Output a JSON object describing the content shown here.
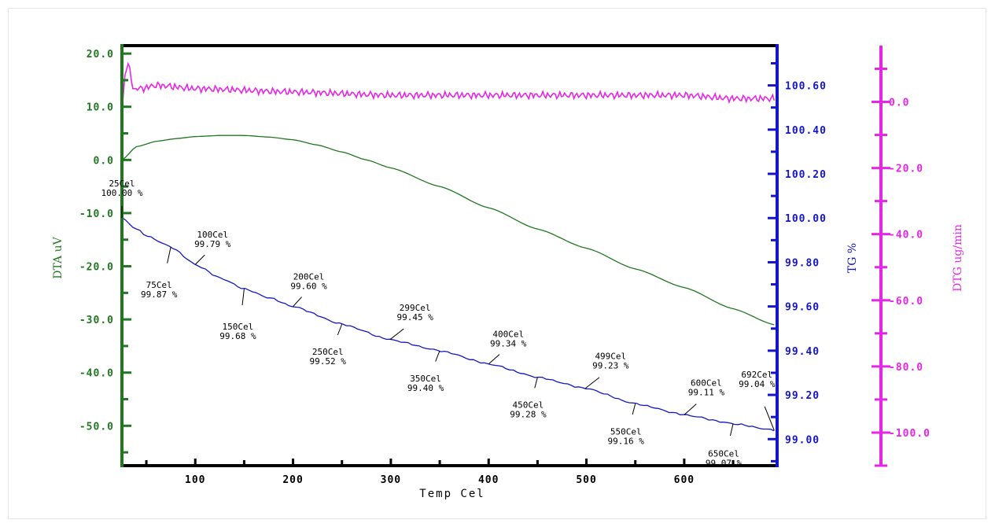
{
  "chart_data": {
    "type": "line",
    "xlabel": "Temp Cel",
    "xlim": [
      25,
      695
    ],
    "x_ticks": [
      100,
      200,
      300,
      400,
      500,
      600
    ],
    "axes": {
      "dta": {
        "label": "DTA uV",
        "ylim": [
          -57.5,
          21.5
        ],
        "ticks": [
          "20.0",
          "10.0",
          "0.0",
          "-10.0",
          "-20.0",
          "-30.0",
          "-40.0",
          "-50.0"
        ],
        "tick_values": [
          20,
          10,
          0,
          -10,
          -20,
          -30,
          -40,
          -50
        ],
        "color": "#217821"
      },
      "tg": {
        "label": "TG %",
        "ylim": [
          98.88,
          100.78
        ],
        "ticks": [
          "100.60",
          "100.40",
          "100.20",
          "100.00",
          "99.80",
          "99.60",
          "99.40",
          "99.20",
          "99.00"
        ],
        "tick_values": [
          100.6,
          100.4,
          100.2,
          100.0,
          99.8,
          99.6,
          99.4,
          99.2,
          99.0
        ],
        "color": "#1515c8"
      },
      "dtg": {
        "label": "DTG ug/min",
        "ylim": [
          -110,
          17
        ],
        "ticks": [
          "0.0",
          "-20.0",
          "-40.0",
          "-60.0",
          "-80.0",
          "-100.0"
        ],
        "tick_values": [
          0,
          -20,
          -40,
          -60,
          -80,
          -100
        ],
        "color": "#e626e6"
      }
    },
    "series": [
      {
        "axis": "dta",
        "color": "#217821",
        "x": [
          25,
          40,
          60,
          80,
          100,
          125,
          150,
          175,
          200,
          225,
          250,
          275,
          300,
          350,
          400,
          450,
          500,
          550,
          600,
          650,
          692
        ],
        "y": [
          0.0,
          2.5,
          3.5,
          4.0,
          4.4,
          4.6,
          4.6,
          4.3,
          3.8,
          2.8,
          1.5,
          0.0,
          -1.5,
          -5.0,
          -9.0,
          -13.0,
          -16.6,
          -20.5,
          -24.0,
          -28.0,
          -31.0
        ]
      },
      {
        "axis": "tg",
        "color": "#1515c8",
        "x": [
          25,
          40,
          50,
          75,
          100,
          125,
          150,
          175,
          200,
          250,
          299,
          350,
          400,
          450,
          499,
          550,
          600,
          650,
          692
        ],
        "y": [
          100.0,
          99.95,
          99.92,
          99.87,
          99.79,
          99.73,
          99.68,
          99.64,
          99.6,
          99.52,
          99.45,
          99.4,
          99.34,
          99.28,
          99.23,
          99.16,
          99.11,
          99.07,
          99.04
        ]
      },
      {
        "axis": "dtg",
        "color": "#e626e6",
        "x": [
          25,
          28,
          32,
          36,
          45,
          60,
          100,
          200,
          300,
          400,
          500,
          600,
          650,
          692
        ],
        "y": [
          -3,
          8,
          12,
          4,
          4,
          5,
          4,
          3,
          2,
          2,
          2,
          2,
          1,
          1
        ]
      }
    ],
    "annotations": [
      {
        "x": 25,
        "temp": "25Cel",
        "value": "100.00 %"
      },
      {
        "x": 75,
        "temp": "75Cel",
        "value": "99.87 %"
      },
      {
        "x": 100,
        "temp": "100Cel",
        "value": "99.79 %"
      },
      {
        "x": 150,
        "temp": "150Cel",
        "value": "99.68 %"
      },
      {
        "x": 200,
        "temp": "200Cel",
        "value": "99.60 %"
      },
      {
        "x": 250,
        "temp": "250Cel",
        "value": "99.52 %"
      },
      {
        "x": 299,
        "temp": "299Cel",
        "value": "99.45 %"
      },
      {
        "x": 350,
        "temp": "350Cel",
        "value": "99.40 %"
      },
      {
        "x": 400,
        "temp": "400Cel",
        "value": "99.34 %"
      },
      {
        "x": 450,
        "temp": "450Cel",
        "value": "99.28 %"
      },
      {
        "x": 499,
        "temp": "499Cel",
        "value": "99.23 %"
      },
      {
        "x": 550,
        "temp": "550Cel",
        "value": "99.16 %"
      },
      {
        "x": 600,
        "temp": "600Cel",
        "value": "99.11 %"
      },
      {
        "x": 650,
        "temp": "650Cel",
        "value": "99.07 %"
      },
      {
        "x": 692,
        "temp": "692Cel",
        "value": "99.04 %"
      }
    ],
    "grid": false
  }
}
